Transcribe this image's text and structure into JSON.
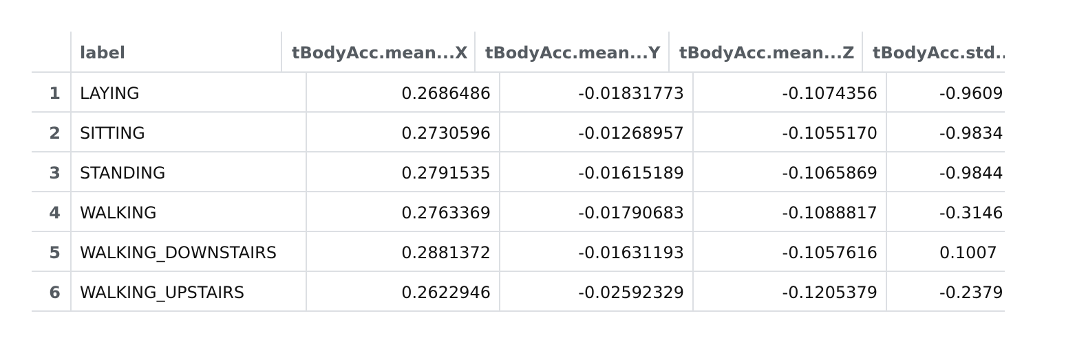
{
  "table": {
    "columns": [
      "",
      "label",
      "tBodyAcc.mean...X",
      "tBodyAcc.mean...Y",
      "tBodyAcc.mean...Z",
      "tBodyAcc.std.."
    ],
    "rows": [
      {
        "idx": "1",
        "label": "LAYING",
        "c1": "0.2686486",
        "c2": "-0.01831773",
        "c3": "-0.1074356",
        "c4": "-0.9609"
      },
      {
        "idx": "2",
        "label": "SITTING",
        "c1": "0.2730596",
        "c2": "-0.01268957",
        "c3": "-0.1055170",
        "c4": "-0.9834"
      },
      {
        "idx": "3",
        "label": "STANDING",
        "c1": "0.2791535",
        "c2": "-0.01615189",
        "c3": "-0.1065869",
        "c4": "-0.9844"
      },
      {
        "idx": "4",
        "label": "WALKING",
        "c1": "0.2763369",
        "c2": "-0.01790683",
        "c3": "-0.1088817",
        "c4": "-0.3146"
      },
      {
        "idx": "5",
        "label": "WALKING_DOWNSTAIRS",
        "c1": "0.2881372",
        "c2": "-0.01631193",
        "c3": "-0.1057616",
        "c4": "0.1007"
      },
      {
        "idx": "6",
        "label": "WALKING_UPSTAIRS",
        "c1": "0.2622946",
        "c2": "-0.02592329",
        "c3": "-0.1205379",
        "c4": "-0.2379"
      }
    ]
  },
  "colors": {
    "border": "#dcdfe3",
    "header_text": "#555b61",
    "cell_text": "#111111"
  }
}
